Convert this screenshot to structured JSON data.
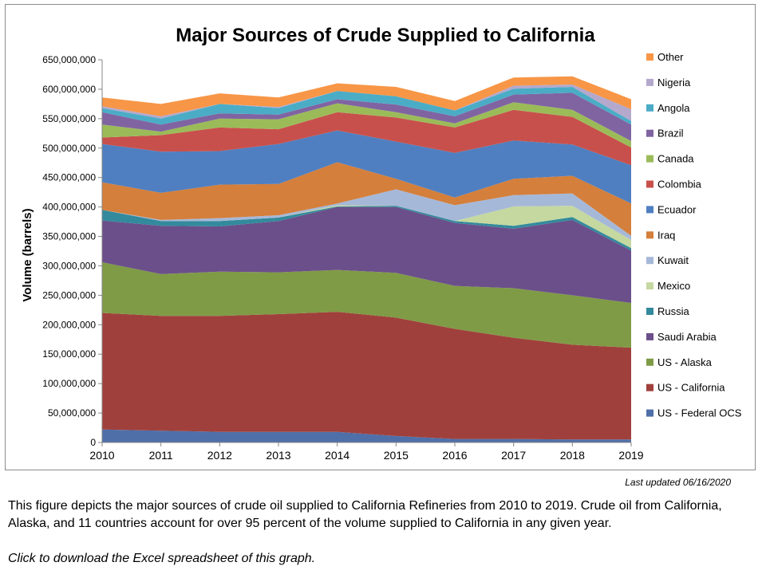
{
  "footer": {
    "updated": "Last updated 06/16/2020",
    "caption": "This figure depicts the major sources of crude oil supplied to California Refineries from 2010 to 2019. Crude oil from California, Alaska, and 11 countries account for over 95 percent of the volume supplied to California in any given year.",
    "download_link": "Click to download the Excel spreadsheet of this graph."
  },
  "chart_data": {
    "type": "area",
    "stacked": true,
    "title": "Major Sources of Crude Supplied to California",
    "ylabel": "Volume (barrels)",
    "xlabel": "",
    "ylim": [
      0,
      650000000
    ],
    "ytick_step": 50000000,
    "ytick_labels": [
      "0",
      "50,000,000",
      "100,000,000",
      "150,000,000",
      "200,000,000",
      "250,000,000",
      "300,000,000",
      "350,000,000",
      "400,000,000",
      "450,000,000",
      "500,000,000",
      "550,000,000",
      "600,000,000",
      "650,000,000"
    ],
    "x": [
      "2010",
      "2011",
      "2012",
      "2013",
      "2014",
      "2015",
      "2016",
      "2017",
      "2018",
      "2019"
    ],
    "grid": false,
    "legend_position": "right",
    "series": [
      {
        "name": "US - Federal OCS",
        "color": "#4f6fa8",
        "values": [
          22000000,
          20000000,
          18000000,
          18000000,
          18000000,
          11000000,
          6000000,
          6000000,
          5000000,
          5000000
        ]
      },
      {
        "name": "US - California",
        "color": "#a0403c",
        "values": [
          198000000,
          195000000,
          197000000,
          200000000,
          204000000,
          201000000,
          187000000,
          172000000,
          161000000,
          156000000
        ]
      },
      {
        "name": "US - Alaska",
        "color": "#7f9b46",
        "values": [
          86000000,
          71000000,
          75000000,
          71000000,
          71000000,
          76000000,
          73000000,
          84000000,
          84000000,
          76000000
        ]
      },
      {
        "name": "Saudi Arabia",
        "color": "#6b4f8a",
        "values": [
          71000000,
          82000000,
          77000000,
          87000000,
          107000000,
          112000000,
          107000000,
          101000000,
          128000000,
          89000000
        ]
      },
      {
        "name": "Russia",
        "color": "#338a9c",
        "values": [
          18000000,
          8000000,
          9000000,
          6000000,
          1000000,
          2000000,
          3000000,
          5000000,
          5000000,
          4000000
        ]
      },
      {
        "name": "Mexico",
        "color": "#c4d8a0",
        "values": [
          0,
          0,
          0,
          0,
          2000000,
          0,
          0,
          33000000,
          19000000,
          14000000
        ]
      },
      {
        "name": "Kuwait",
        "color": "#a6b8d8",
        "values": [
          0,
          2000000,
          5000000,
          4000000,
          3000000,
          28000000,
          27000000,
          19000000,
          21000000,
          7000000
        ]
      },
      {
        "name": "Iraq",
        "color": "#d47f3c",
        "values": [
          47000000,
          46000000,
          57000000,
          53000000,
          70000000,
          18000000,
          13000000,
          28000000,
          30000000,
          55000000
        ]
      },
      {
        "name": "Ecuador",
        "color": "#4f7fc0",
        "values": [
          65000000,
          70000000,
          57000000,
          68000000,
          54000000,
          63000000,
          76000000,
          65000000,
          53000000,
          65000000
        ]
      },
      {
        "name": "Colombia",
        "color": "#c8504c",
        "values": [
          11000000,
          28000000,
          40000000,
          25000000,
          31000000,
          41000000,
          43000000,
          52000000,
          47000000,
          30000000
        ]
      },
      {
        "name": "Canada",
        "color": "#9bbb59",
        "values": [
          22000000,
          6000000,
          15000000,
          17000000,
          15000000,
          9000000,
          7000000,
          13000000,
          12000000,
          11000000
        ]
      },
      {
        "name": "Brazil",
        "color": "#8064a2",
        "values": [
          21000000,
          12000000,
          9000000,
          8000000,
          7000000,
          13000000,
          12000000,
          13000000,
          29000000,
          28000000
        ]
      },
      {
        "name": "Angola",
        "color": "#4bacc6",
        "values": [
          7000000,
          10000000,
          16000000,
          11000000,
          14000000,
          14000000,
          10000000,
          10000000,
          10000000,
          6000000
        ]
      },
      {
        "name": "Nigeria",
        "color": "#b4a8cc",
        "values": [
          3000000,
          4000000,
          0,
          2000000,
          0,
          0,
          0,
          5000000,
          4000000,
          20000000
        ]
      },
      {
        "name": "Other",
        "color": "#f79646",
        "values": [
          15000000,
          21000000,
          18000000,
          16000000,
          13000000,
          16000000,
          16000000,
          14000000,
          14000000,
          17000000
        ]
      }
    ]
  }
}
